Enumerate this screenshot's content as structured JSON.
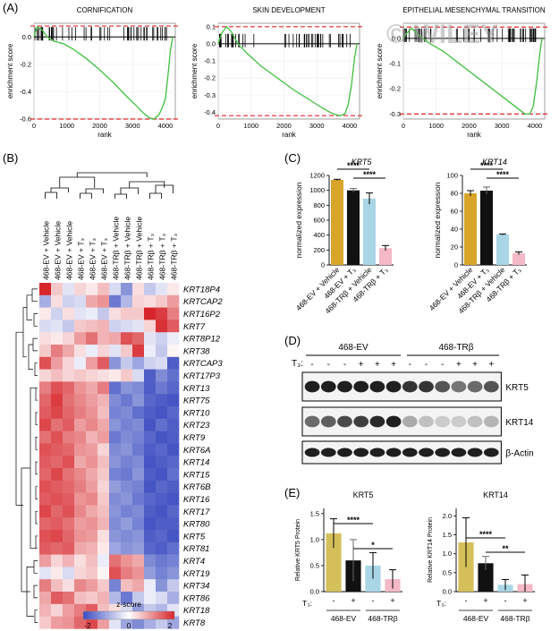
{
  "panel_labels": {
    "a": "(A)",
    "b": "(B)",
    "c": "(C)",
    "d": "(D)",
    "e": "(E)"
  },
  "watermark": "© WILEY",
  "chart_data": [
    {
      "type": "line",
      "title": "CORNIFICATION",
      "xlabel": "rank",
      "ylabel": "enrichment score",
      "x_ticks": [
        "0",
        "1000",
        "2000",
        "3000",
        "4000"
      ],
      "y_ticks": [
        "0.0",
        "-0.2",
        "-0.4",
        "-0.6"
      ],
      "xlim": [
        0,
        4300
      ],
      "ylim": [
        -0.6,
        0.1
      ],
      "threshold_lines": [
        0.08,
        -0.6
      ],
      "x": [
        0,
        50,
        100,
        250,
        400,
        600,
        900,
        1200,
        1600,
        2000,
        2400,
        2800,
        3100,
        3300,
        3500,
        3650,
        3800,
        3900,
        4000,
        4070,
        4150,
        4220
      ],
      "y": [
        0.0,
        0.04,
        0.075,
        0.05,
        0.0,
        -0.03,
        -0.05,
        -0.09,
        -0.16,
        -0.24,
        -0.33,
        -0.43,
        -0.5,
        -0.55,
        -0.59,
        -0.6,
        -0.57,
        -0.52,
        -0.45,
        -0.3,
        -0.1,
        0.0
      ]
    },
    {
      "type": "line",
      "title": "SKIN DEVELOPMENT",
      "xlabel": "rank",
      "ylabel": "enrichment score",
      "x_ticks": [
        "0",
        "1000",
        "2000",
        "3000",
        "4000"
      ],
      "y_ticks": [
        "0.1",
        "0.0",
        "-0.1",
        "-0.2",
        "-0.3",
        "-0.4"
      ],
      "xlim": [
        0,
        4300
      ],
      "ylim": [
        -0.44,
        0.12
      ],
      "threshold_lines": [
        0.1,
        -0.42
      ],
      "x": [
        0,
        100,
        250,
        400,
        600,
        900,
        1300,
        1800,
        2300,
        2800,
        3200,
        3500,
        3700,
        3850,
        3950,
        4050,
        4150,
        4220
      ],
      "y": [
        0.0,
        0.06,
        0.1,
        0.07,
        0.0,
        -0.06,
        -0.13,
        -0.2,
        -0.27,
        -0.33,
        -0.38,
        -0.41,
        -0.42,
        -0.41,
        -0.36,
        -0.25,
        -0.08,
        0.0
      ]
    },
    {
      "type": "line",
      "title": "EPITHELIAL MESENCHYMAL TRANSITION",
      "xlabel": "rank",
      "ylabel": "enrichment score",
      "x_ticks": [
        "0",
        "1000",
        "2000",
        "3000",
        "4000"
      ],
      "y_ticks": [
        "0.0",
        "-0.1",
        "-0.2",
        "-0.3"
      ],
      "xlim": [
        0,
        4300
      ],
      "ylim": [
        -0.32,
        0.06
      ],
      "threshold_lines": [
        0.045,
        -0.3
      ],
      "x": [
        0,
        100,
        250,
        450,
        800,
        1200,
        1600,
        2000,
        2400,
        2800,
        3200,
        3500,
        3700,
        3850,
        3950,
        4050,
        4150,
        4220
      ],
      "y": [
        0.0,
        0.02,
        0.04,
        0.015,
        -0.02,
        -0.05,
        -0.09,
        -0.13,
        -0.17,
        -0.21,
        -0.25,
        -0.28,
        -0.3,
        -0.3,
        -0.27,
        -0.18,
        -0.06,
        0.0
      ]
    },
    {
      "type": "heatmap",
      "columns": [
        "468-EV + Vehicle",
        "468-EV + Vehicle",
        "468-EV + Vehicle",
        "468-EV + T₃",
        "468-EV + T₃",
        "468-EV + T₃",
        "468-TRβ + Vehicle",
        "468-TRβ + Vehicle",
        "468-TRβ + Vehicle",
        "468-TRβ + T₃",
        "468-TRβ + T₃",
        "468-TRβ + T₃"
      ],
      "rows": [
        "KRT18P4",
        "KRTCAP2",
        "KRT16P2",
        "KRT7",
        "KRT8P12",
        "KRT38",
        "KRTCAP3",
        "KRT17P3",
        "KRT13",
        "KRT75",
        "KRT10",
        "KRT23",
        "KRT9",
        "KRT6A",
        "KRT14",
        "KRT15",
        "KRT6B",
        "KRT16",
        "KRT17",
        "KRT80",
        "KRT5",
        "KRT81",
        "KRT4",
        "KRT19",
        "KRT34",
        "KRT86",
        "KRT18",
        "KRT8"
      ],
      "values": [
        [
          2,
          0.5,
          -0.3,
          0.4,
          0.2,
          0.6,
          -0.4,
          -1.2,
          0.3,
          -0.6,
          -0.3,
          0.2
        ],
        [
          -0.9,
          0.3,
          -0.5,
          -0.4,
          0.8,
          1.0,
          -1.5,
          -0.8,
          0.4,
          0.3,
          0.5,
          0.9
        ],
        [
          0.2,
          -0.5,
          0.3,
          -0.3,
          -0.2,
          -0.6,
          0.3,
          0.5,
          0.5,
          2.0,
          1.8,
          1.2
        ],
        [
          -0.4,
          -0.3,
          -0.6,
          0.5,
          0.6,
          0.7,
          -0.5,
          -0.4,
          -0.3,
          0.4,
          1.9,
          1.5
        ],
        [
          0.3,
          0.2,
          0.4,
          0.9,
          1.3,
          0.7,
          0.8,
          1.6,
          1.4,
          -0.3,
          -0.5,
          -0.2
        ],
        [
          0.5,
          1.2,
          0.8,
          0.3,
          -0.2,
          0.4,
          -0.3,
          0.5,
          1.8,
          -0.2,
          -0.6,
          0.1
        ],
        [
          1.6,
          0.9,
          0.4,
          -0.2,
          0.9,
          1.5,
          -1.2,
          -0.6,
          -1.0,
          -0.5,
          -0.4,
          -1.8
        ],
        [
          0.4,
          0.6,
          0.4,
          0.5,
          0.4,
          0.3,
          0.2,
          0.5,
          -0.4,
          -1.8,
          -1.3,
          -1.6
        ],
        [
          1.2,
          1.6,
          1.4,
          1.0,
          0.8,
          1.2,
          -1.6,
          -1.2,
          -1.3,
          -1.8,
          -1.5,
          -1.7
        ],
        [
          1.4,
          1.8,
          1.3,
          1.1,
          0.9,
          0.7,
          -1.3,
          -1.5,
          -1.2,
          -1.7,
          -1.8,
          -1.9
        ],
        [
          1.5,
          1.7,
          1.4,
          1.2,
          1.0,
          0.6,
          -1.4,
          -1.3,
          -1.6,
          -1.8,
          -1.9,
          -1.7
        ],
        [
          1.7,
          1.3,
          1.5,
          0.9,
          1.1,
          0.8,
          -1.2,
          -1.4,
          -1.3,
          -1.9,
          -1.6,
          -1.8
        ],
        [
          1.3,
          1.6,
          1.2,
          1.1,
          0.7,
          0.9,
          -1.5,
          -1.3,
          -1.4,
          -1.7,
          -1.9,
          -1.8
        ],
        [
          1.6,
          1.5,
          1.4,
          1.0,
          0.9,
          0.4,
          -1.3,
          -1.2,
          -1.5,
          -1.8,
          -1.7,
          -1.9
        ],
        [
          1.5,
          1.4,
          1.6,
          0.8,
          1.0,
          0.6,
          -1.2,
          -1.4,
          -1.3,
          -1.9,
          -1.8,
          -1.7
        ],
        [
          1.4,
          1.7,
          1.3,
          1.1,
          0.8,
          0.5,
          -1.4,
          -1.5,
          -1.2,
          -1.8,
          -1.9,
          -1.6
        ],
        [
          1.6,
          1.5,
          1.4,
          1.2,
          0.9,
          0.4,
          -1.1,
          -1.3,
          -1.4,
          -1.9,
          -1.7,
          -1.8
        ],
        [
          1.5,
          1.6,
          1.5,
          1.0,
          1.1,
          0.5,
          -1.3,
          -1.2,
          -1.5,
          -1.7,
          -1.8,
          -1.9
        ],
        [
          1.7,
          1.4,
          1.6,
          1.1,
          0.8,
          0.6,
          -1.2,
          -1.4,
          -1.3,
          -1.8,
          -1.9,
          -1.7
        ],
        [
          1.4,
          1.5,
          1.3,
          0.9,
          1.0,
          0.7,
          -1.3,
          -1.1,
          -1.4,
          -1.9,
          -1.8,
          -1.8
        ],
        [
          1.6,
          1.7,
          1.4,
          1.0,
          0.9,
          0.3,
          -1.2,
          -1.3,
          -1.2,
          -1.8,
          -1.7,
          -1.9
        ],
        [
          1.5,
          1.4,
          1.5,
          0.8,
          0.7,
          0.2,
          -1.0,
          -1.2,
          -1.1,
          -1.7,
          -1.8,
          -1.6
        ],
        [
          0.9,
          0.4,
          0.7,
          0.3,
          0.6,
          -0.2,
          1.3,
          1.0,
          0.8,
          -1.3,
          -1.5,
          -1.4
        ],
        [
          -0.3,
          0.2,
          -0.4,
          0.4,
          0.5,
          0.1,
          1.6,
          1.2,
          1.0,
          -1.1,
          -1.4,
          -1.2
        ],
        [
          1.2,
          0.6,
          0.3,
          1.1,
          0.9,
          0.5,
          -1.4,
          0.6,
          0.8,
          -0.2,
          -1.2,
          -0.6
        ],
        [
          0.8,
          1.5,
          1.3,
          0.6,
          0.5,
          0.7,
          -0.8,
          -1.5,
          -0.6,
          -0.2,
          -0.4,
          -0.9
        ],
        [
          0.7,
          0.4,
          0.9,
          1.2,
          1.5,
          0.6,
          0.3,
          -0.4,
          -1.1,
          -0.6,
          -0.8,
          -0.3
        ],
        [
          0.5,
          0.9,
          1.0,
          1.4,
          1.7,
          0.9,
          -0.3,
          -1.0,
          -1.3,
          -0.9,
          -0.6,
          -1.0
        ]
      ],
      "colorbar": {
        "label": "z-score",
        "ticks": [
          "-2",
          "0",
          "2"
        ],
        "low": "#3b4cc0",
        "mid": "#ffffff",
        "high": "#d6262b"
      }
    },
    {
      "type": "bar",
      "title": "KRT5",
      "ylabel": "normalized expression",
      "categories": [
        "468-EV + Vehicle",
        "468-EV + T₃",
        "468-TRβ + Vehicle",
        "468-TRβ + T₃"
      ],
      "values": [
        1140,
        1000,
        890,
        225
      ],
      "errors": [
        8,
        25,
        75,
        35
      ],
      "colors": [
        "#d8a52a",
        "#111111",
        "#a9d6e5",
        "#f4b8c6"
      ],
      "y_ticks": [
        "0",
        "200",
        "400",
        "600",
        "800",
        "1000",
        "1200"
      ],
      "ylim": [
        0,
        1200
      ],
      "significance": [
        {
          "label": "****",
          "from": 0,
          "to": 2
        },
        {
          "label": "****",
          "from": 1,
          "to": 3
        }
      ]
    },
    {
      "type": "bar",
      "title": "KRT14",
      "ylabel": "normalized expression",
      "categories": [
        "468-EV + Vehicle",
        "468-EV + T₃",
        "468-TRβ + Vehicle",
        "468-TRβ + T₃"
      ],
      "values": [
        80,
        83,
        34,
        13
      ],
      "errors": [
        3,
        4,
        0.6,
        1.5
      ],
      "colors": [
        "#d8a52a",
        "#111111",
        "#a9d6e5",
        "#f4b8c6"
      ],
      "y_ticks": [
        "0",
        "20",
        "40",
        "60",
        "80",
        "100"
      ],
      "ylim": [
        0,
        100
      ],
      "significance": [
        {
          "label": "****",
          "from": 0,
          "to": 2
        },
        {
          "label": "****",
          "from": 1,
          "to": 3
        }
      ]
    },
    {
      "type": "bar",
      "title": "KRT5",
      "ylabel": "Relative KRT5 Protein",
      "categories": [
        "468-EV −",
        "468-EV +",
        "468-TRβ −",
        "468-TRβ +"
      ],
      "values": [
        1.12,
        0.6,
        0.5,
        0.24
      ],
      "errors": [
        0.28,
        0.4,
        0.25,
        0.18
      ],
      "colors": [
        "#d4bf5a",
        "#111111",
        "#a9d6e5",
        "#f4b8c6"
      ],
      "y_ticks": [
        "0.0",
        "0.5",
        "1.0",
        "1.5"
      ],
      "ylim": [
        0,
        1.6
      ],
      "significance": [
        {
          "label": "****",
          "from": 0,
          "to": 2
        },
        {
          "label": "*",
          "from": 1,
          "to": 3
        }
      ]
    },
    {
      "type": "bar",
      "title": "KRT14",
      "ylabel": "Relative KRT14 Protein",
      "categories": [
        "468-EV −",
        "468-EV +",
        "468-TRβ −",
        "468-TRβ +"
      ],
      "values": [
        1.3,
        0.75,
        0.18,
        0.2
      ],
      "errors": [
        0.65,
        0.18,
        0.14,
        0.24
      ],
      "colors": [
        "#d4bf5a",
        "#111111",
        "#a9d6e5",
        "#f4b8c6"
      ],
      "y_ticks": [
        "0.0",
        "0.5",
        "1.0",
        "1.5",
        "2.0"
      ],
      "ylim": [
        0,
        2.2
      ],
      "significance": [
        {
          "label": "****",
          "from": 0,
          "to": 2
        },
        {
          "label": "**",
          "from": 1,
          "to": 3
        }
      ]
    }
  ],
  "western": {
    "group_labels": [
      "468-EV",
      "468-TRβ"
    ],
    "t3_label": "T₃:",
    "t3_signs": [
      "-",
      "-",
      "-",
      "+",
      "+",
      "+",
      "-",
      "-",
      "-",
      "+",
      "+",
      "+"
    ],
    "bands": [
      {
        "label": "KRT5",
        "intensity": [
          0.95,
          0.95,
          0.95,
          0.95,
          0.95,
          0.95,
          0.85,
          0.85,
          0.7,
          0.55,
          0.6,
          0.7
        ]
      },
      {
        "label": "KRT14",
        "intensity": [
          0.6,
          0.65,
          0.75,
          0.8,
          0.9,
          0.95,
          0.3,
          0.2,
          0.15,
          0.15,
          0.2,
          0.25
        ]
      },
      {
        "label": "β-Actin",
        "intensity": [
          0.95,
          0.95,
          0.95,
          0.95,
          0.95,
          0.95,
          0.95,
          0.95,
          0.95,
          0.95,
          0.95,
          0.95
        ]
      }
    ]
  },
  "protein_x": {
    "t3_label": "T₃:",
    "signs": [
      "-",
      "+",
      "-",
      "+"
    ],
    "groups": [
      "468-EV",
      "468-TRβ"
    ]
  }
}
